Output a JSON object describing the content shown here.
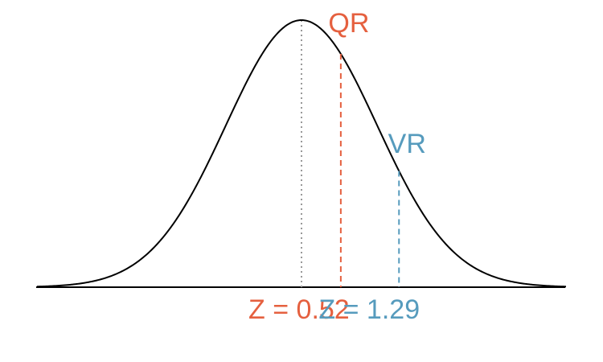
{
  "chart_data": {
    "type": "line",
    "curve": "standard-normal-density",
    "xlim": [
      -3.5,
      3.5
    ],
    "mean": 0,
    "markers": [
      {
        "name": "QR",
        "z": 0.52,
        "label": "QR",
        "z_label": "Z = 0.52",
        "color": "#E5603F"
      },
      {
        "name": "VR",
        "z": 1.29,
        "label": "VR",
        "z_label": "Z = 1.29",
        "color": "#569BBD"
      }
    ],
    "colors": {
      "curve": "#000000",
      "mean_line": "#999999"
    }
  }
}
